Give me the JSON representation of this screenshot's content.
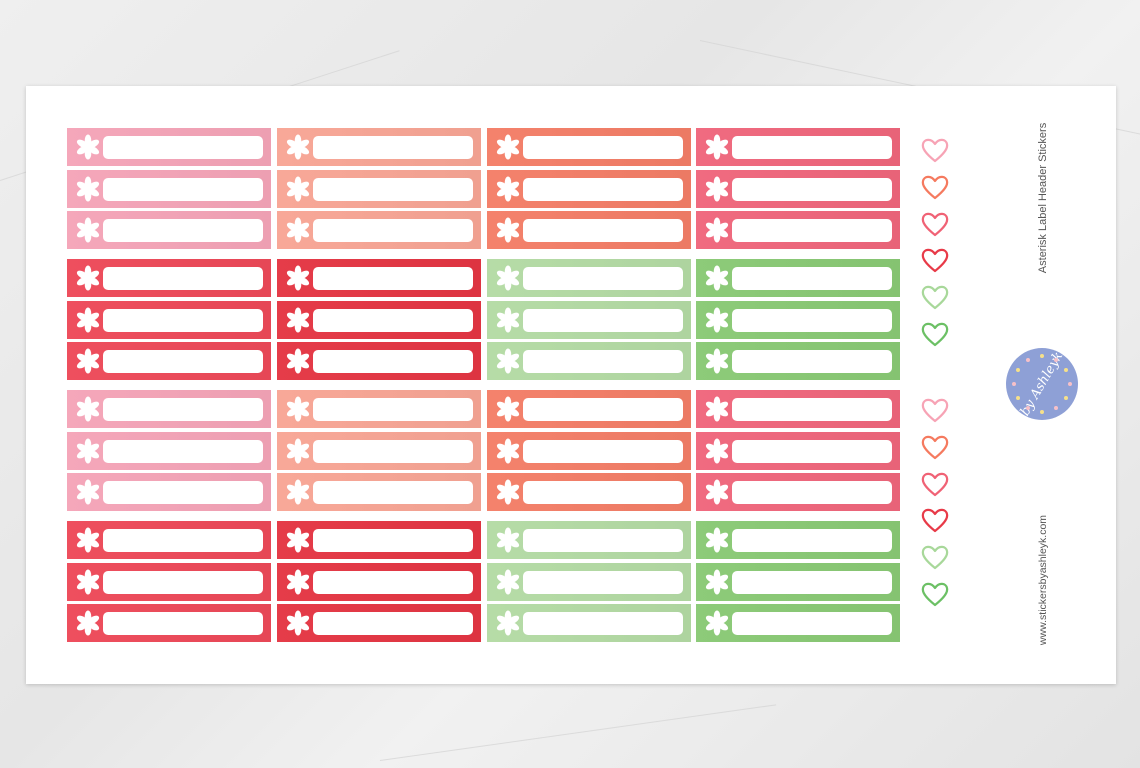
{
  "product": {
    "title": "Asterisk Label Header Stickers",
    "website": "www.stickersbyashleyk.com",
    "logo_text": "by Ashleyk",
    "logo_color": "#8ea0d6"
  },
  "sticker_grid": {
    "icon": "asterisk-icon",
    "rows_per_group": 3,
    "groups": [
      {
        "colors": [
          "#f5a7ba",
          "#f8a898",
          "#f4826c",
          "#f06b80"
        ]
      },
      {
        "colors": [
          "#ee4f5e",
          "#e53c49",
          "#b6dca7",
          "#8dcb79"
        ]
      },
      {
        "colors": [
          "#f5a7ba",
          "#f8a898",
          "#f4826c",
          "#f06b80"
        ]
      },
      {
        "colors": [
          "#ee4f5e",
          "#e53c49",
          "#b6dca7",
          "#8dcb79"
        ]
      }
    ]
  },
  "hearts": {
    "icon": "heart-outline-icon",
    "groups": [
      [
        "#f7a3b5",
        "#f57a5f",
        "#f06275",
        "#e83a48",
        "#a8d89a",
        "#6cc065"
      ],
      [
        "#f7a3b5",
        "#f57a5f",
        "#f06275",
        "#e83a48",
        "#a8d89a",
        "#6cc065"
      ]
    ]
  }
}
